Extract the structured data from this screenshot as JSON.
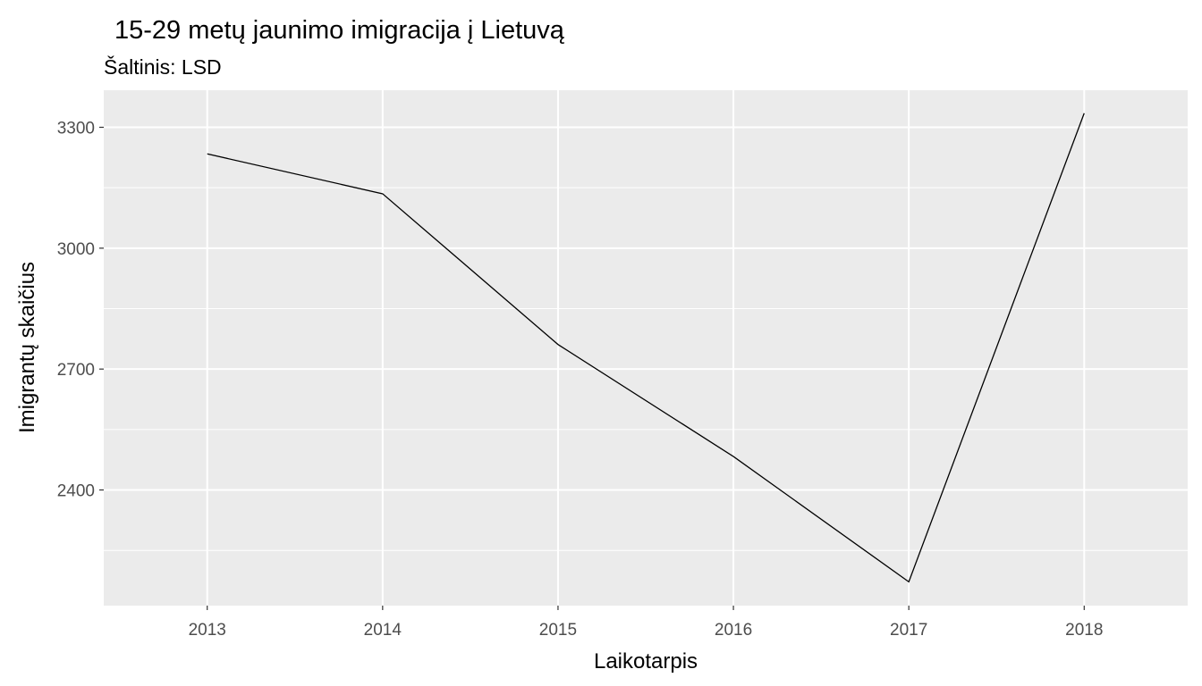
{
  "chart_data": {
    "type": "line",
    "title": "15-29 metų jaunimo imigracija į Lietuvą",
    "subtitle": "Šaltinis: LSD",
    "xlabel": "Laikotarpis",
    "ylabel": "Imigrantų skaičius",
    "x": [
      2013,
      2014,
      2015,
      2016,
      2017,
      2018
    ],
    "values": [
      3234,
      3135,
      2761,
      2483,
      2172,
      3335
    ],
    "x_ticks": [
      "2013",
      "2014",
      "2015",
      "2016",
      "2017",
      "2018"
    ],
    "y_ticks": [
      "2400",
      "2700",
      "3000",
      "3300"
    ],
    "xlim": [
      2012.41,
      2018.59
    ],
    "ylim": [
      2113,
      3392
    ],
    "grid": true,
    "legend": "none",
    "line_color": "#000000",
    "panel_background": "#ebebeb",
    "grid_color": "#ffffff"
  }
}
